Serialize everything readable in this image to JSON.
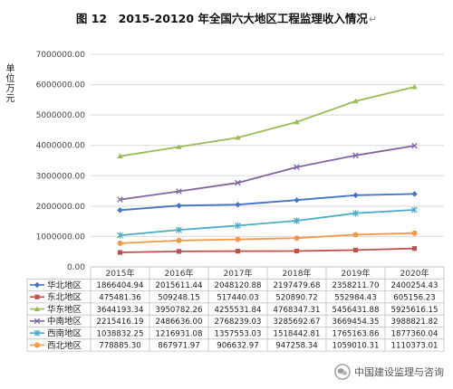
{
  "figure": {
    "title": "图 12　2015-20120 年全国六大地区工程监理收入情况",
    "title_mark": "↵",
    "y_unit_label": "单位万元",
    "watermark_text": "中国建设监理与咨询"
  },
  "chart_data": {
    "type": "line",
    "title": "图 12　2015-20120 年全国六大地区工程监理收入情况",
    "ylabel": "单位万元",
    "xlabel": "",
    "ylim": [
      0,
      7000000
    ],
    "y_ticks": [
      "0.00",
      "1000000.00",
      "2000000.00",
      "3000000.00",
      "4000000.00",
      "5000000.00",
      "6000000.00",
      "7000000.00"
    ],
    "y_tick_values": [
      0,
      1000000,
      2000000,
      3000000,
      4000000,
      5000000,
      6000000,
      7000000
    ],
    "grid": true,
    "legend_placement": "bottom data table",
    "categories": [
      "2015年",
      "2016年",
      "2017年",
      "2018年",
      "2019年",
      "2020年"
    ],
    "series": [
      {
        "name": "华北地区",
        "color": "#4472C4",
        "marker": "diamond",
        "labels": [
          "1866404.94",
          "2015611.44",
          "2048120.88",
          "2197479.68",
          "2358211.70",
          "2400254.43"
        ],
        "values": [
          1866404.94,
          2015611.44,
          2048120.88,
          2197479.68,
          2358211.7,
          2400254.43
        ]
      },
      {
        "name": "东北地区",
        "color": "#C0504D",
        "marker": "square",
        "labels": [
          "475481.36",
          "509248.15",
          "517440.03",
          "520890.72",
          "552984.43",
          "605156.23"
        ],
        "values": [
          475481.36,
          509248.15,
          517440.03,
          520890.72,
          552984.43,
          605156.23
        ]
      },
      {
        "name": "华东地区",
        "color": "#9BBB59",
        "marker": "triangle",
        "labels": [
          "3644193.34",
          "3950782.26",
          "4255531.84",
          "4768347.31",
          "5456431.88",
          "5925616.15"
        ],
        "values": [
          3644193.34,
          3950782.26,
          4255531.84,
          4768347.31,
          5456431.88,
          5925616.15
        ]
      },
      {
        "name": "中南地区",
        "color": "#8064A2",
        "marker": "x",
        "labels": [
          "2215416.19",
          "2486636.00",
          "2768239.03",
          "3285692.67",
          "3669454.35",
          "3988821.82"
        ],
        "values": [
          2215416.19,
          2486636.0,
          2768239.03,
          3285692.67,
          3669454.35,
          3988821.82
        ]
      },
      {
        "name": "西南地区",
        "color": "#4BACC6",
        "marker": "star",
        "labels": [
          "1038832.25",
          "1216931.08",
          "1357553.03",
          "1518442.81",
          "1765163.86",
          "1877360.04"
        ],
        "values": [
          1038832.25,
          1216931.08,
          1357553.03,
          1518442.81,
          1765163.86,
          1877360.04
        ]
      },
      {
        "name": "西北地区",
        "color": "#F79646",
        "marker": "circle",
        "labels": [
          "778885.30",
          "867971.97",
          "906632.97",
          "947258.34",
          "1059010.31",
          "1110373.01"
        ],
        "values": [
          778885.3,
          867971.97,
          906632.97,
          947258.34,
          1059010.31,
          1110373.01
        ]
      }
    ]
  }
}
